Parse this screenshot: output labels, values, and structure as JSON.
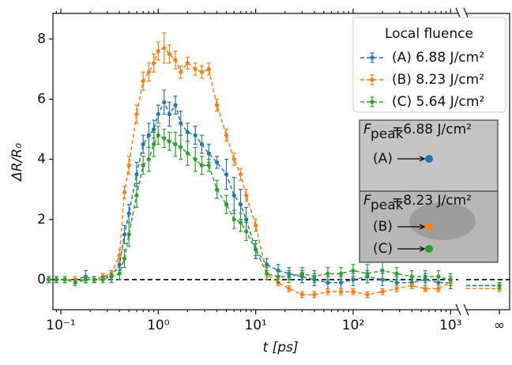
{
  "chart_data": {
    "type": "line",
    "xscale": "log",
    "xlabel": "t [ps]",
    "ylabel": "ΔR/R₀",
    "xlim": [
      0.083,
      1200
    ],
    "ylim": [
      -1,
      8.85
    ],
    "xticks": [
      {
        "value": 0.1,
        "label": "10⁻¹"
      },
      {
        "value": 1,
        "label": "10⁰"
      },
      {
        "value": 10,
        "label": "10¹"
      },
      {
        "value": 100,
        "label": "10²"
      },
      {
        "value": 1000,
        "label": "10³"
      }
    ],
    "yticks": [
      0,
      2,
      4,
      6,
      8
    ],
    "x_inf_label": "∞",
    "reference_line": 0,
    "legend_title": "Local fluence",
    "x": [
      0.075,
      0.09,
      0.11,
      0.14,
      0.18,
      0.22,
      0.27,
      0.33,
      0.4,
      0.45,
      0.5,
      0.6,
      0.7,
      0.8,
      0.9,
      1.0,
      1.15,
      1.3,
      1.5,
      1.7,
      2.0,
      2.4,
      2.8,
      3.3,
      4,
      5,
      6,
      7,
      8,
      10,
      13,
      17,
      22,
      30,
      40,
      55,
      75,
      100,
      140,
      200,
      280,
      400,
      550,
      750,
      1000
    ],
    "series": [
      {
        "name": "(A) 6.88 J/cm²",
        "color": "#1f77b4",
        "values": [
          0,
          0,
          0,
          0,
          0.1,
          0,
          0.1,
          0.1,
          0.5,
          1.5,
          2.2,
          3.5,
          4.5,
          4.8,
          5.0,
          5.5,
          5.9,
          5.5,
          5.8,
          5.2,
          4.9,
          4.8,
          4.5,
          4.2,
          3.9,
          3.5,
          2.8,
          2.5,
          2.0,
          1.0,
          0.5,
          0.3,
          0.2,
          0.1,
          0,
          -0.1,
          -0.1,
          0,
          0.1,
          0,
          -0.1,
          -0.1,
          0,
          -0.1,
          -0.1
        ],
        "errors": [
          0.1,
          0.1,
          0.1,
          0.1,
          0.2,
          0.1,
          0.1,
          0.2,
          0.2,
          0.3,
          0.3,
          0.4,
          0.3,
          0.4,
          0.3,
          0.3,
          0.4,
          0.4,
          0.3,
          0.4,
          0.3,
          0.3,
          0.3,
          0.3,
          0.2,
          0.5,
          0.6,
          0.5,
          0.4,
          0.3,
          0.2,
          0.2,
          0.2,
          0.2,
          0.2,
          0.2,
          0.2,
          0.2,
          0.2,
          0.2,
          0.2,
          0.2,
          0.2,
          0.2,
          0.2
        ],
        "inf_value": -0.2,
        "inf_error": 0.1
      },
      {
        "name": "(B) 8.23 J/cm²",
        "color": "#ff7f0e",
        "values": [
          0,
          0,
          0,
          0,
          0,
          0,
          0.1,
          0.2,
          0.8,
          2.9,
          3.8,
          5.5,
          6.6,
          6.9,
          7.2,
          7.6,
          7.7,
          7.5,
          7.3,
          6.9,
          7.2,
          7.0,
          6.9,
          7.0,
          5.8,
          4.8,
          4.0,
          3.5,
          2.8,
          1.8,
          0.2,
          -0.1,
          -0.3,
          -0.5,
          -0.5,
          -0.4,
          -0.4,
          -0.4,
          -0.5,
          -0.4,
          -0.3,
          -0.2,
          -0.3,
          -0.3,
          -0.1
        ],
        "errors": [
          0.1,
          0.1,
          0.1,
          0.1,
          0.1,
          0.1,
          0.1,
          0.1,
          0.2,
          0.2,
          0.3,
          0.3,
          0.3,
          0.3,
          0.3,
          0.3,
          0.5,
          0.3,
          0.3,
          0.2,
          0.2,
          0.2,
          0.2,
          0.2,
          0.2,
          0.2,
          0.2,
          0.2,
          0.2,
          0.2,
          0.1,
          0.1,
          0.1,
          0.1,
          0.1,
          0.1,
          0.1,
          0.1,
          0.1,
          0.1,
          0.1,
          0.1,
          0.1,
          0.1,
          0.1
        ],
        "inf_value": -0.3,
        "inf_error": 0.1
      },
      {
        "name": "(C) 5.64 J/cm²",
        "color": "#2ca02c",
        "values": [
          0,
          0,
          0,
          -0.1,
          0,
          0,
          0,
          0.1,
          0.2,
          0.7,
          1.5,
          2.8,
          3.8,
          4.0,
          4.5,
          4.8,
          4.7,
          4.6,
          4.5,
          4.4,
          4.2,
          4.0,
          3.8,
          3.8,
          3.0,
          2.5,
          2.0,
          1.9,
          1.6,
          1.0,
          0.2,
          0.1,
          0.1,
          0.2,
          0.1,
          0.2,
          0.2,
          0.3,
          0.2,
          0.3,
          0.2,
          0.1,
          0.1,
          0.1,
          0
        ],
        "errors": [
          0.1,
          0.1,
          0.1,
          0.1,
          0.1,
          0.1,
          0.1,
          0.1,
          0.2,
          0.3,
          0.4,
          0.4,
          0.3,
          0.4,
          0.4,
          0.3,
          0.3,
          0.3,
          0.4,
          0.4,
          0.4,
          0.4,
          0.3,
          0.2,
          0.3,
          0.3,
          0.3,
          0.3,
          0.3,
          0.2,
          0.2,
          0.2,
          0.2,
          0.2,
          0.2,
          0.2,
          0.2,
          0.2,
          0.3,
          0.3,
          0.2,
          0.2,
          0.2,
          0.2,
          0.2
        ],
        "inf_value": -0.2,
        "inf_error": 0.1
      }
    ],
    "inset": {
      "panels": [
        {
          "symbol": "F",
          "subscript": "peak",
          "text": "=6.88 J/cm²",
          "points": [
            "(A)"
          ]
        },
        {
          "symbol": "F",
          "subscript": "peak",
          "text": "=8.23 J/cm²",
          "points": [
            "(B)",
            "(C)"
          ]
        }
      ]
    }
  }
}
